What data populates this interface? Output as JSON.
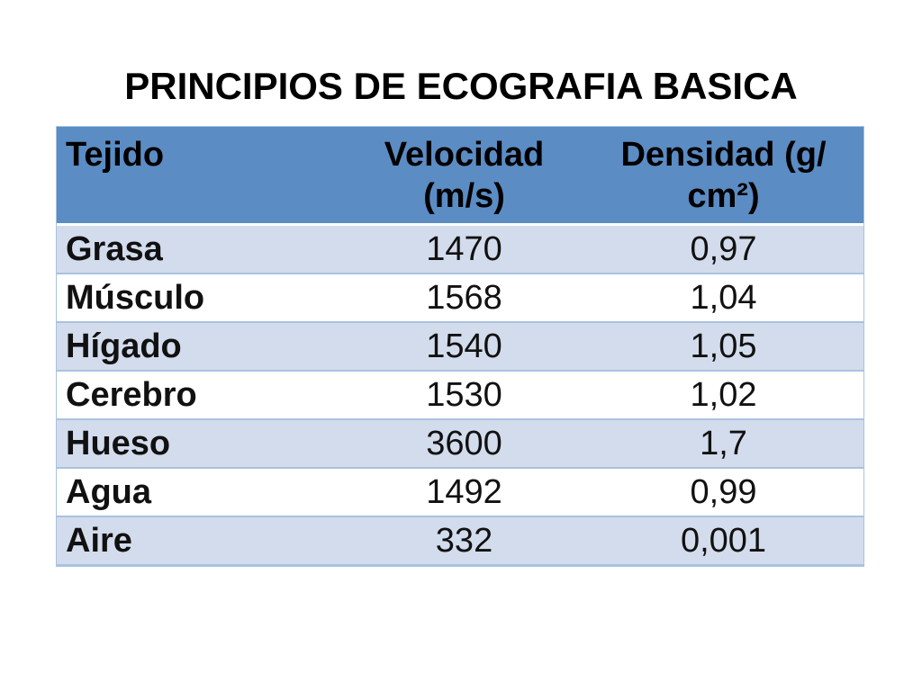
{
  "slide": {
    "title": "PRINCIPIOS DE ECOGRAFIA BASICA"
  },
  "table": {
    "headers": [
      "Tejido",
      "Velocidad (m/s)",
      "Densidad (g/ cm²)"
    ],
    "rows": [
      [
        "Grasa",
        "1470",
        "0,97"
      ],
      [
        "Músculo",
        "1568",
        "1,04"
      ],
      [
        "Hígado",
        "1540",
        "1,05"
      ],
      [
        "Cerebro",
        "1530",
        "1,02"
      ],
      [
        "Hueso",
        "3600",
        "1,7"
      ],
      [
        "Agua",
        "1492",
        "0,99"
      ],
      [
        "Aire",
        "332",
        "0,001"
      ]
    ]
  },
  "colors": {
    "header_bg": "#5b8cc4",
    "band_bg": "#d3dcec",
    "row_bg": "#ffffff",
    "border": "#a9c2e0"
  }
}
